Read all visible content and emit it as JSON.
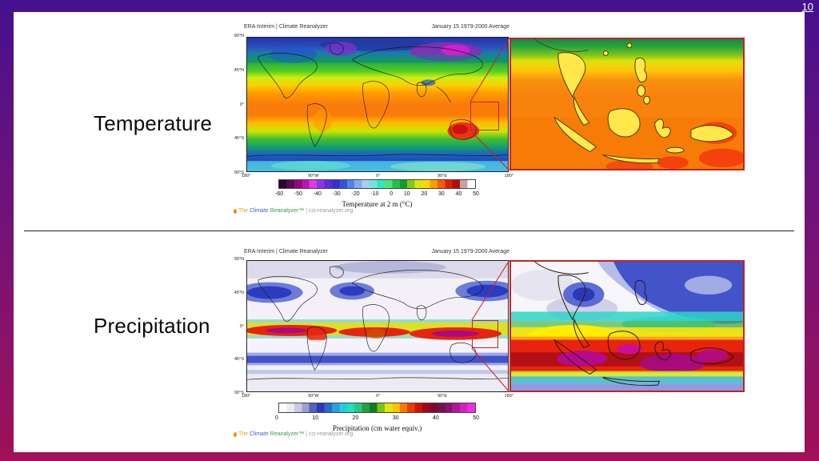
{
  "slide": {
    "page_number": "10"
  },
  "temperature": {
    "label": "Temperature",
    "header_left": "ERA-Interim | Climate Reanalyzer",
    "header_right": "January 15 1979-2000 Average",
    "map": {
      "lat_ticks": [
        "90°N",
        "45°N",
        "0°",
        "45°S",
        "90°S"
      ],
      "lon_ticks": [
        "180°",
        "90°W",
        "0°",
        "90°E",
        "180°"
      ]
    },
    "colorbar": {
      "ticks": [
        "-60",
        "-50",
        "-40",
        "-30",
        "-20",
        "-10",
        "0",
        "10",
        "20",
        "30",
        "40",
        "50"
      ],
      "label": "Temperature at 2 m (°C)",
      "colors": [
        "#2a0633",
        "#5c0a52",
        "#8f0d7e",
        "#c011b0",
        "#e23ae2",
        "#9232e8",
        "#5b2fd8",
        "#3a2fd0",
        "#2f55dd",
        "#5580e8",
        "#85aaee",
        "#aacdf2",
        "#6fe3e6",
        "#2ce9c2",
        "#52e07a",
        "#27bd4b",
        "#149a33",
        "#86c818",
        "#d8e80c",
        "#ffd900",
        "#ff9d00",
        "#ff5a00",
        "#e21e00",
        "#b01010",
        "#caa0a0",
        "#ffffff"
      ]
    },
    "credit": {
      "prefix": "The",
      "word1": "Climate",
      "word2": "Reanalyzer™",
      "suffix": "| cci-reanalyzer.org"
    }
  },
  "precipitation": {
    "label": "Precipitation",
    "header_left": "ERA-Interim | Climate Reanalyzer",
    "header_right": "January 15 1979-2000 Average",
    "map": {
      "lat_ticks": [
        "90°N",
        "45°N",
        "0°",
        "45°S",
        "90°S"
      ],
      "lon_ticks": [
        "180°",
        "90°W",
        "0°",
        "90°E",
        "180°"
      ]
    },
    "colorbar": {
      "ticks": [
        "0",
        "10",
        "20",
        "30",
        "40",
        "50"
      ],
      "label": "Precipitation (cm water equiv.)",
      "colors": [
        "#ffffff",
        "#ebebf2",
        "#c8c8e0",
        "#9aa0d0",
        "#5560c0",
        "#2a3ab8",
        "#2a6ad0",
        "#2aa0dd",
        "#22cce0",
        "#20e0c0",
        "#28c880",
        "#20a040",
        "#0f7d28",
        "#78c414",
        "#e0e60a",
        "#ffc400",
        "#ff7a00",
        "#f03800",
        "#cc1404",
        "#a00818",
        "#800830",
        "#701448",
        "#8c1270",
        "#b01898",
        "#d422c0",
        "#f02ee0"
      ]
    },
    "credit": {
      "prefix": "The",
      "word1": "Climate",
      "word2": "Reanalyzer™",
      "suffix": "| cci-reanalyzer.org"
    }
  },
  "accents": {
    "zoom_box_color": "#c42222",
    "inset_border_color": "#c42222"
  }
}
